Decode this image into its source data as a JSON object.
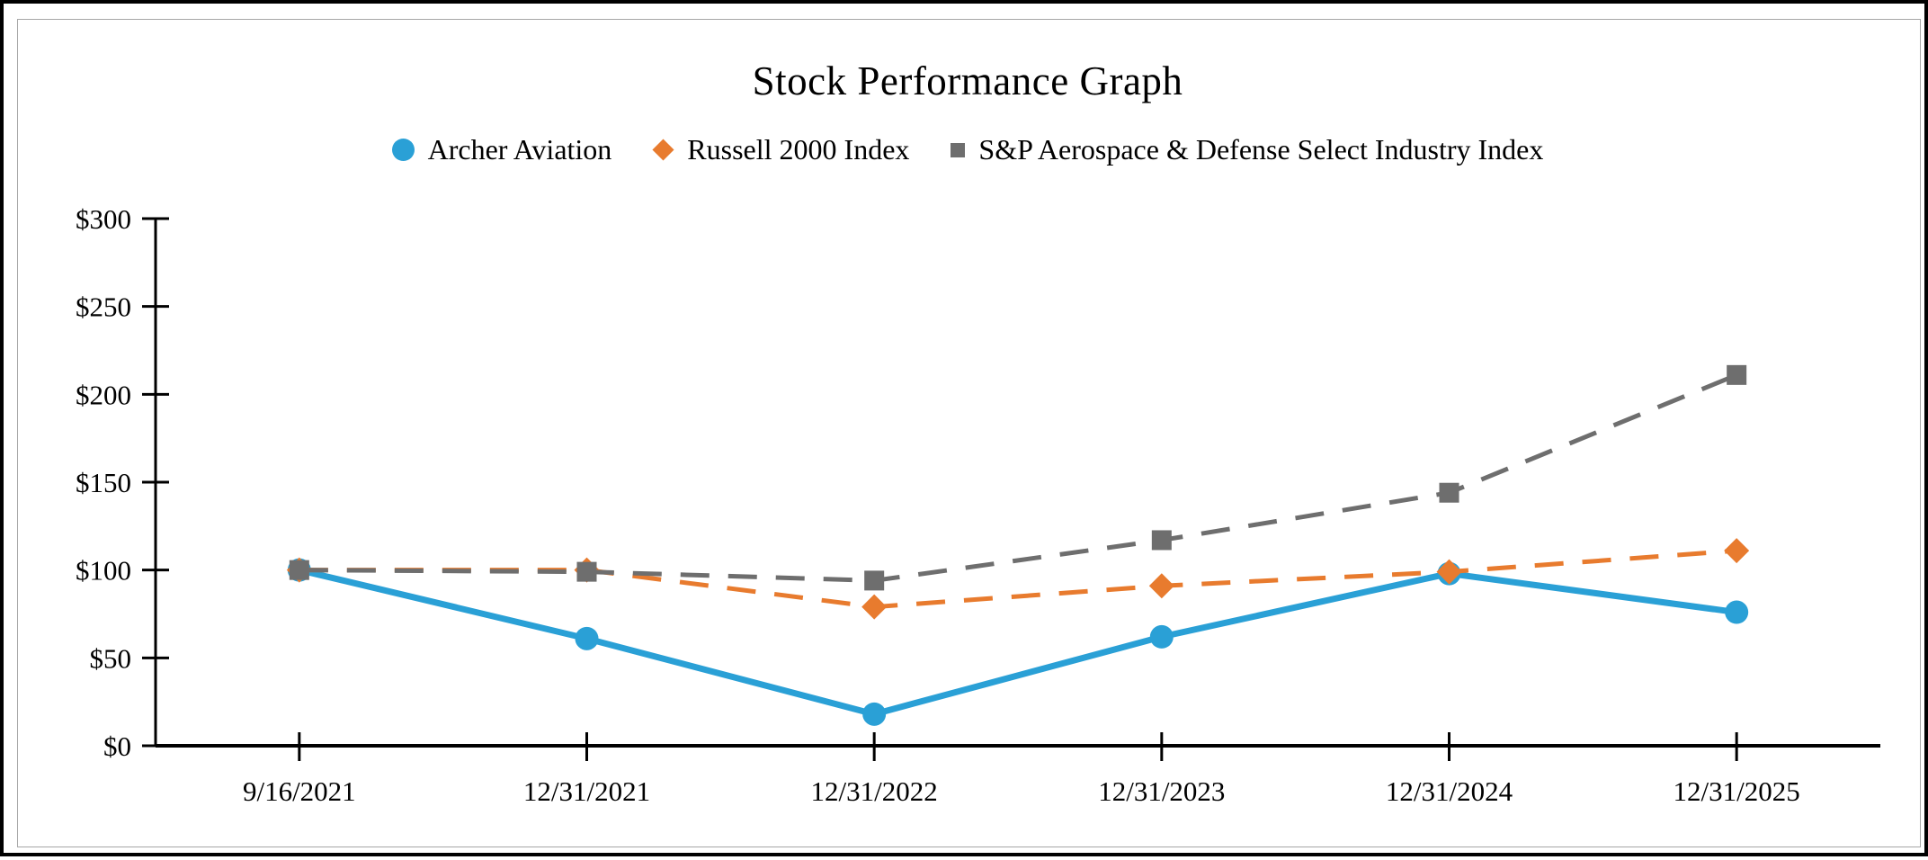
{
  "page": {
    "background_color": "#ffffff",
    "outer_border_color": "#000000",
    "panel_border_color": "#a6a6a6"
  },
  "chart_data": {
    "type": "line",
    "title": "Stock Performance Graph",
    "categories": [
      "9/16/2021",
      "12/31/2021",
      "12/31/2022",
      "12/31/2023",
      "12/31/2024",
      "12/31/2025"
    ],
    "series": [
      {
        "name": "Archer Aviation",
        "color": "#2AA0D6",
        "marker": "circle",
        "line_style": "solid",
        "values": [
          100,
          61,
          18,
          62,
          98,
          76
        ]
      },
      {
        "name": "Russell 2000 Index",
        "color": "#E87B2E",
        "marker": "diamond",
        "line_style": "dashed",
        "values": [
          100,
          100,
          79,
          91,
          99,
          111
        ]
      },
      {
        "name": "S&P Aerospace & Defense Select Industry Index",
        "color": "#6E6E6E",
        "marker": "square",
        "line_style": "dashed",
        "values": [
          100,
          99,
          94,
          117,
          144,
          211
        ]
      }
    ],
    "xlabel": "",
    "ylabel": "",
    "ylim": [
      0,
      300
    ],
    "ytick_step": 50,
    "ytick_labels": [
      "$0",
      "$50",
      "$100",
      "$150",
      "$200",
      "$250",
      "$300"
    ],
    "axis_color": "#000000",
    "grid": "off",
    "legend_position": "top-center"
  }
}
